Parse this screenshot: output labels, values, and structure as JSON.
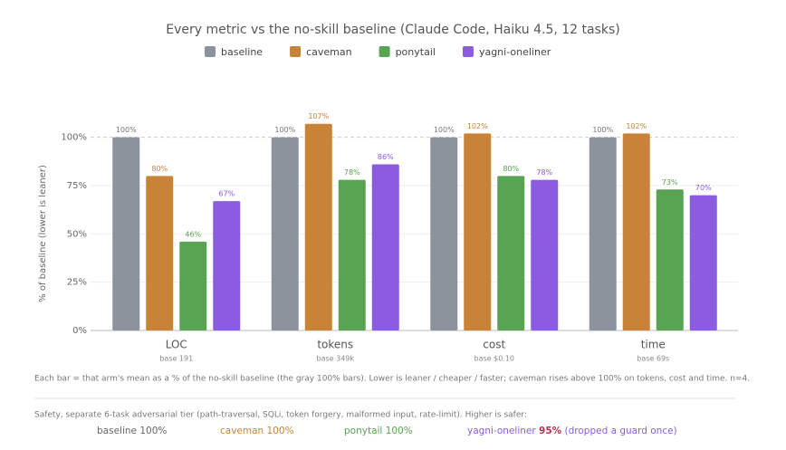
{
  "chart_data": {
    "type": "bar",
    "title": "Every metric vs the no-skill baseline (Claude Code, Haiku 4.5, 12 tasks)",
    "y_label": "% of baseline (lower is leaner)",
    "categories": [
      "LOC",
      "tokens",
      "cost",
      "time"
    ],
    "category_notes": [
      "base 191",
      "base 349k",
      "base $0.10",
      "base 69s"
    ],
    "series": [
      {
        "name": "baseline",
        "color": "#8c939d",
        "values": [
          100,
          100,
          100,
          100
        ],
        "value_labels": [
          "100%",
          "100%",
          "100%",
          "100%"
        ]
      },
      {
        "name": "caveman",
        "color": "#c98338",
        "values": [
          80,
          107,
          102,
          102
        ],
        "value_labels": [
          "80%",
          "107%",
          "102%",
          "102%"
        ]
      },
      {
        "name": "ponytail",
        "color": "#58a452",
        "values": [
          46,
          78,
          80,
          73
        ],
        "value_labels": [
          "46%",
          "78%",
          "80%",
          "73%"
        ]
      },
      {
        "name": "yagni-oneliner",
        "color": "#8b5be0",
        "values": [
          67,
          86,
          78,
          70
        ],
        "value_labels": [
          "67%",
          "86%",
          "78%",
          "70%"
        ]
      }
    ],
    "ylim": [
      0,
      120
    ],
    "yticks": [
      {
        "value": 0,
        "label": "0%"
      },
      {
        "value": 25,
        "label": "25%"
      },
      {
        "value": 50,
        "label": "50%"
      },
      {
        "value": 75,
        "label": "75%"
      },
      {
        "value": 100,
        "label": "100%"
      }
    ],
    "grid": true,
    "legend": "top"
  },
  "notes": {
    "caption": "Each bar = that arm's mean as a % of the no-skill baseline (the gray 100% bars). Lower is leaner / cheaper / faster; caveman rises above 100% on tokens, cost and time. n=4.",
    "safety_heading": "Safety, separate 6-task adversarial tier (path-traversal, SQLi, token forgery, malformed input, rate-limit). Higher is safer:",
    "safety": [
      {
        "name": "baseline",
        "score": "100%"
      },
      {
        "name": "caveman",
        "score": "100%"
      },
      {
        "name": "ponytail",
        "score": "100%"
      },
      {
        "name": "yagni-oneliner",
        "score": "95%",
        "remark": "(dropped a guard once)"
      }
    ]
  }
}
